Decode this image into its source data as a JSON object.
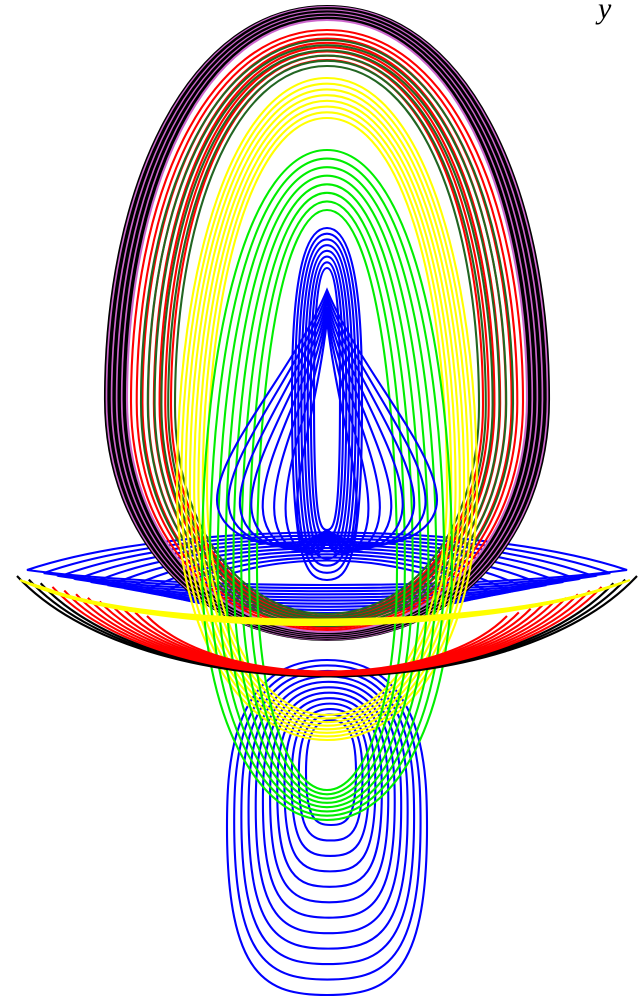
{
  "figure": {
    "axis_label": "y",
    "colors": {
      "outer_family": "#000000",
      "outer_tint": "#cc66cc",
      "red_family": "#ff0000",
      "dark_green_family": "#226622",
      "yellow_family": "#ffff00",
      "green_family": "#00ee00",
      "blue_family": "#0000ff",
      "background": "#ffffff"
    },
    "families": [
      {
        "name": "blue-family",
        "count": 12
      },
      {
        "name": "green-family",
        "count": 8
      },
      {
        "name": "yellow-family",
        "count": 8
      },
      {
        "name": "red-family",
        "count": 8
      },
      {
        "name": "dark-green-family",
        "count": 6
      },
      {
        "name": "outer-black-family",
        "count": 14
      }
    ]
  }
}
